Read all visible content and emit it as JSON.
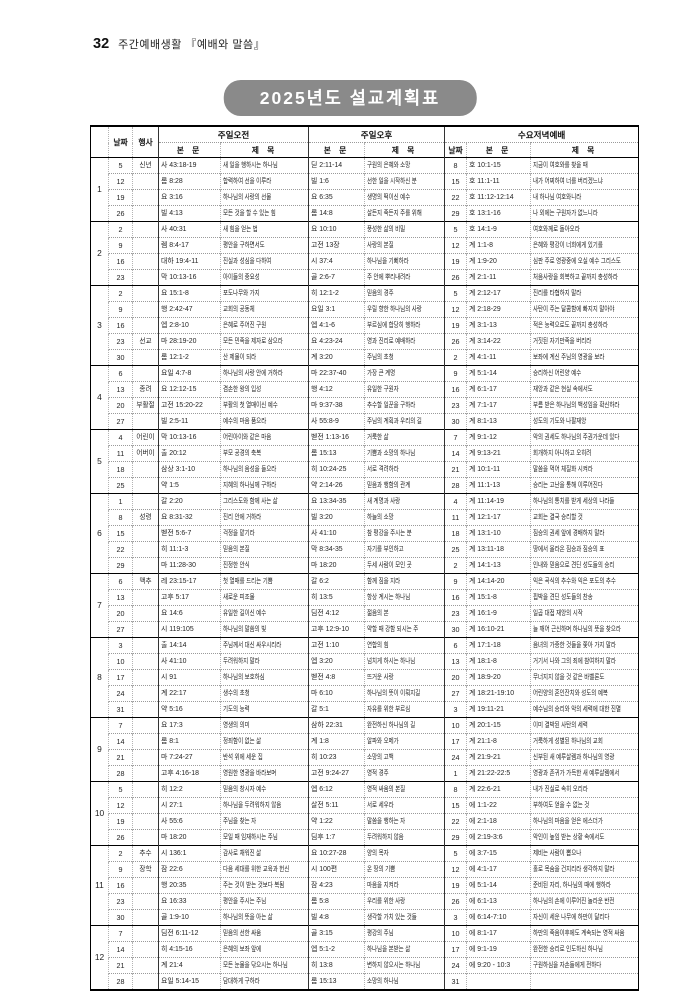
{
  "page": {
    "number": "32",
    "series": "주간예배생활 『예배와 말씀』",
    "badge": "2025년도 설교계획표"
  },
  "colors": {
    "badge_bg": "#8a8a8a",
    "badge_text": "#ffffff",
    "table_line": "#000000"
  },
  "table": {
    "headers": {
      "date": "날짜",
      "event": "행사",
      "am": "주일오전",
      "pm": "주일오후",
      "wed": "수요저녁예배",
      "ref": "본 문",
      "title": "제 목",
      "wed_date": "날짜"
    },
    "months": [
      {
        "num": "1",
        "rows": [
          {
            "date": "5",
            "event": "신년",
            "am_ref": "사 43:18-19",
            "am_title": "새 일을 행하시는 하나님",
            "pm_ref": "딛 2:11-14",
            "pm_title": "구원의 은혜와 소망",
            "wed_date": "8",
            "wed_ref": "호 10:1-15",
            "wed_title": "지금이 여호와를 찾을 때"
          },
          {
            "date": "12",
            "event": "",
            "am_ref": "롬 8:28",
            "am_title": "합력하여 선을 이루라",
            "pm_ref": "빌 1:6",
            "pm_title": "선한 일을 시작하신 분",
            "wed_date": "15",
            "wed_ref": "호 11:1-11",
            "wed_title": "내가 어찌하여 너를 버리겠느냐"
          },
          {
            "date": "19",
            "event": "",
            "am_ref": "요 3:16",
            "am_title": "하나님의 사랑의 선물",
            "pm_ref": "요 6:35",
            "pm_title": "생명의 떡이신 예수",
            "wed_date": "22",
            "wed_ref": "호 11:12-12:14",
            "wed_title": "내 하나님 여호와니라"
          },
          {
            "date": "26",
            "event": "",
            "am_ref": "빌 4:13",
            "am_title": "모든 것을 할 수 있는 힘",
            "pm_ref": "롬 14:8",
            "pm_title": "살든지 죽든지 주를 위해",
            "wed_date": "29",
            "wed_ref": "호 13:1-16",
            "wed_title": "나 외에는 구원자가 없느니라"
          }
        ]
      },
      {
        "num": "2",
        "rows": [
          {
            "date": "2",
            "event": "",
            "am_ref": "사 40:31",
            "am_title": "새 힘을 얻는 법",
            "pm_ref": "요 10:10",
            "pm_title": "풍성한 삶의 비밀",
            "wed_date": "5",
            "wed_ref": "호 14:1-9",
            "wed_title": "여호와께로 돌아오라"
          },
          {
            "date": "9",
            "event": "",
            "am_ref": "렘 8:4-17",
            "am_title": "평안을 구하면서도",
            "pm_ref": "고전 13장",
            "pm_title": "사랑의 본질",
            "wed_date": "12",
            "wed_ref": "계 1:1-8",
            "wed_title": "은혜와 평강이 너희에게 있기를"
          },
          {
            "date": "16",
            "event": "",
            "am_ref": "대하 19:4-11",
            "am_title": "진실과 성심을 다하여",
            "pm_ref": "시 37:4",
            "pm_title": "하나님을 기뻐하라",
            "wed_date": "19",
            "wed_ref": "계 1:9-20",
            "wed_title": "심판 주로 영광중에 오실 예수 그리스도"
          },
          {
            "date": "23",
            "event": "",
            "am_ref": "막 10:13-16",
            "am_title": "아이들의 중요성",
            "pm_ref": "골 2:6-7",
            "pm_title": "주 안에 뿌리내려라",
            "wed_date": "26",
            "wed_ref": "계 2:1-11",
            "wed_title": "처음사랑을 회복하고 끝까지 충성하라"
          }
        ]
      },
      {
        "num": "3",
        "rows": [
          {
            "date": "2",
            "event": "",
            "am_ref": "요 15:1-8",
            "am_title": "포도나무와 가지",
            "pm_ref": "히 12:1-2",
            "pm_title": "믿음의 경주",
            "wed_date": "5",
            "wed_ref": "계 2:12-17",
            "wed_title": "진리를 타협하지 말라"
          },
          {
            "date": "9",
            "event": "",
            "am_ref": "행 2:42-47",
            "am_title": "교회의 공동체",
            "pm_ref": "요일 3:1",
            "pm_title": "우릴 향한 하나님의 사랑",
            "wed_date": "12",
            "wed_ref": "계 2:18-29",
            "wed_title": "사탄이 주는 달콤함에 빠지지 말아야"
          },
          {
            "date": "16",
            "event": "",
            "am_ref": "엡 2:8-10",
            "am_title": "은혜로 주어진 구원",
            "pm_ref": "엡 4:1-6",
            "pm_title": "부르심에 합당히 행하라",
            "wed_date": "19",
            "wed_ref": "계 3:1-13",
            "wed_title": "적은 능력으로도 끝까지 충성하라"
          },
          {
            "date": "23",
            "event": "선교",
            "am_ref": "마 28:19-20",
            "am_title": "모든 민족을 제자로 삼으라",
            "pm_ref": "요 4:23-24",
            "pm_title": "영과 진리로 예배하라",
            "wed_date": "26",
            "wed_ref": "계 3:14-22",
            "wed_title": "거짓된 자기만족을 버리라"
          },
          {
            "date": "30",
            "event": "",
            "am_ref": "롬 12:1-2",
            "am_title": "산 제물이 되라",
            "pm_ref": "계 3:20",
            "pm_title": "주님의 초청",
            "wed_date": "2",
            "wed_ref": "계 4:1-11",
            "wed_title": "보좌에 계신 주님의 영광을 보라"
          }
        ]
      },
      {
        "num": "4",
        "rows": [
          {
            "date": "6",
            "event": "",
            "am_ref": "요일 4:7-8",
            "am_title": "하나님의 사랑 안에 거하라",
            "pm_ref": "마 22:37-40",
            "pm_title": "가장 큰 계명",
            "wed_date": "9",
            "wed_ref": "계 5:1-14",
            "wed_title": "승리하신 어린양 예수"
          },
          {
            "date": "13",
            "event": "종려",
            "am_ref": "요 12:12-15",
            "am_title": "겸손한 왕의 입성",
            "pm_ref": "행 4:12",
            "pm_title": "유일한 구원자",
            "wed_date": "16",
            "wed_ref": "계 6:1-17",
            "wed_title": "재앙과 같은 현실 속에서도"
          },
          {
            "date": "20",
            "event": "부활절",
            "am_ref": "고전 15:20-22",
            "am_title": "부활의 첫 열매이신 예수",
            "pm_ref": "마 9:37-38",
            "pm_title": "추수할 일꾼을 구하라",
            "wed_date": "23",
            "wed_ref": "계 7:1-17",
            "wed_title": "부름 받은 하나님의 백성임을 확신하라"
          },
          {
            "date": "27",
            "event": "",
            "am_ref": "빌 2:5-11",
            "am_title": "예수의 마음 품으라",
            "pm_ref": "사 55:8-9",
            "pm_title": "주님의 계획과 우리의 길",
            "wed_date": "30",
            "wed_ref": "계 8:1-13",
            "wed_title": "성도의 기도와 나팔재앙"
          }
        ]
      },
      {
        "num": "5",
        "rows": [
          {
            "date": "4",
            "event": "어린이",
            "am_ref": "막 10:13-16",
            "am_title": "어린아이와 같은 마음",
            "pm_ref": "벧전 1:13-16",
            "pm_title": "거룩한 삶",
            "wed_date": "7",
            "wed_ref": "계 9:1-12",
            "wed_title": "악의 권세도 하나님의 주권가운데 있다"
          },
          {
            "date": "11",
            "event": "어버이",
            "am_ref": "출 20:12",
            "am_title": "부모 공경의 축복",
            "pm_ref": "롬 15:13",
            "pm_title": "기쁨과 소망의 하나님",
            "wed_date": "14",
            "wed_ref": "계 9:13-21",
            "wed_title": "회개하지 아니하고 오히려"
          },
          {
            "date": "18",
            "event": "",
            "am_ref": "삼상 3:1-10",
            "am_title": "하나님의 음성을 들으라",
            "pm_ref": "히 10:24-25",
            "pm_title": "서로 격려하라",
            "wed_date": "21",
            "wed_ref": "계 10:1-11",
            "wed_title": "말씀을 먹어 체질화 시켜라"
          },
          {
            "date": "25",
            "event": "",
            "am_ref": "약 1:5",
            "am_title": "지혜의 하나님께 구하라",
            "pm_ref": "약 2:14-26",
            "pm_title": "믿음과 행함의 관계",
            "wed_date": "28",
            "wed_ref": "계 11:1-13",
            "wed_title": "승리는 고난을 통해 이루어진다"
          }
        ]
      },
      {
        "num": "6",
        "rows": [
          {
            "date": "1",
            "event": "",
            "am_ref": "갈 2:20",
            "am_title": "그리스도와 함께 사는 삶",
            "pm_ref": "요 13:34-35",
            "pm_title": "새 계명과 사랑",
            "wed_date": "4",
            "wed_ref": "계 11:14-19",
            "wed_title": "하나님의 통치를 받게 세상의 나라들"
          },
          {
            "date": "8",
            "event": "성령",
            "am_ref": "요 8:31-32",
            "am_title": "진리 안에 거하라",
            "pm_ref": "빌 3:20",
            "pm_title": "하늘의 소망",
            "wed_date": "11",
            "wed_ref": "계 12:1-17",
            "wed_title": "교회는 결국 승리할 것"
          },
          {
            "date": "15",
            "event": "",
            "am_ref": "벧전 5:6-7",
            "am_title": "걱정을 맡기라",
            "pm_ref": "사 41:10",
            "pm_title": "참 평강을 주시는 분",
            "wed_date": "18",
            "wed_ref": "계 13:1-10",
            "wed_title": "짐승의 권세 앞에 경배하지 말라"
          },
          {
            "date": "22",
            "event": "",
            "am_ref": "히 11:1-3",
            "am_title": "믿음의 본질",
            "pm_ref": "막 8:34-35",
            "pm_title": "자기를 부인하고",
            "wed_date": "25",
            "wed_ref": "계 13:11-18",
            "wed_title": "땅에서 올라온 짐승과 짐승의 표"
          },
          {
            "date": "29",
            "event": "",
            "am_ref": "마 11:28-30",
            "am_title": "진정한 안식",
            "pm_ref": "마 18:20",
            "pm_title": "두세 사람이 모인 곳",
            "wed_date": "2",
            "wed_ref": "계 14:1-13",
            "wed_title": "인내와 믿음으로 견딘 성도들의 승리"
          }
        ]
      },
      {
        "num": "7",
        "rows": [
          {
            "date": "6",
            "event": "맥추",
            "am_ref": "레 23:15-17",
            "am_title": "첫 열매를 드리는 기쁨",
            "pm_ref": "갈 6:2",
            "pm_title": "함께 짐을 지라",
            "wed_date": "9",
            "wed_ref": "계 14:14-20",
            "wed_title": "익은 곡식의 추수와 익은 포도의 추수"
          },
          {
            "date": "13",
            "event": "",
            "am_ref": "고후 5:17",
            "am_title": "새로운 피조물",
            "pm_ref": "히 13:5",
            "pm_title": "항상 계시는 하나님",
            "wed_date": "16",
            "wed_ref": "계 15:1-8",
            "wed_title": "핍박을 견딘 성도들의 찬송"
          },
          {
            "date": "20",
            "event": "",
            "am_ref": "요 14:6",
            "am_title": "유일한 길이신 예수",
            "pm_ref": "딤전 4:12",
            "pm_title": "젊음의 본",
            "wed_date": "23",
            "wed_ref": "계 16:1-9",
            "wed_title": "일곱 대접 재앙의 시작"
          },
          {
            "date": "27",
            "event": "",
            "am_ref": "시 119:105",
            "am_title": "하나님의 말씀의 빛",
            "pm_ref": "고후 12:9-10",
            "pm_title": "약할 때 강함 되시는 주",
            "wed_date": "30",
            "wed_ref": "계 16:10-21",
            "wed_title": "늘 깨어 근신하며 하나님의 뜻을 찾으라"
          }
        ]
      },
      {
        "num": "8",
        "rows": [
          {
            "date": "3",
            "event": "",
            "am_ref": "출 14:14",
            "am_title": "주님께서 대신 싸우시리라",
            "pm_ref": "고전 1:10",
            "pm_title": "연합의 힘",
            "wed_date": "6",
            "wed_ref": "계 17:1-18",
            "wed_title": "음녀의 가증한 것들을 쫓아 가지 말라"
          },
          {
            "date": "10",
            "event": "",
            "am_ref": "사 41:10",
            "am_title": "두려워하지 말라",
            "pm_ref": "엡 3:20",
            "pm_title": "넘치게 하시는 하나님",
            "wed_date": "13",
            "wed_ref": "계 18:1-8",
            "wed_title": "거기서 나와 그의 죄에 참여하지 말라"
          },
          {
            "date": "17",
            "event": "",
            "am_ref": "시 91",
            "am_title": "하나님의 보호하심",
            "pm_ref": "벧전 4:8",
            "pm_title": "뜨거운 사랑",
            "wed_date": "20",
            "wed_ref": "계 18:9-20",
            "wed_title": "무너지지 않을 것 같은 바벨론도"
          },
          {
            "date": "24",
            "event": "",
            "am_ref": "계 22:17",
            "am_title": "생수의 초청",
            "pm_ref": "마 6:10",
            "pm_title": "하나님의 뜻이 이뤄지길",
            "wed_date": "27",
            "wed_ref": "계 18:21-19:10",
            "wed_title": "어린양의 혼인잔치와 성도의 예복"
          },
          {
            "date": "31",
            "event": "",
            "am_ref": "약 5:16",
            "am_title": "기도의 능력",
            "pm_ref": "갈 5:1",
            "pm_title": "자유를 위한 부르심",
            "wed_date": "3",
            "wed_ref": "계 19:11-21",
            "wed_title": "예수님의 승리와 악의 세력에 대한 진멸"
          }
        ]
      },
      {
        "num": "9",
        "rows": [
          {
            "date": "7",
            "event": "",
            "am_ref": "요 17:3",
            "am_title": "영생의 의미",
            "pm_ref": "삼하 22:31",
            "pm_title": "완전하신 하나님의 길",
            "wed_date": "10",
            "wed_ref": "계 20:1-15",
            "wed_title": "이미 결박된 사탄의 세력"
          },
          {
            "date": "14",
            "event": "",
            "am_ref": "롬 8:1",
            "am_title": "정죄함이 없는 삶",
            "pm_ref": "계 1:8",
            "pm_title": "알파와 오메가",
            "wed_date": "17",
            "wed_ref": "계 21:1-8",
            "wed_title": "거룩하게 성별된 하나님의 교회"
          },
          {
            "date": "21",
            "event": "",
            "am_ref": "마 7:24-27",
            "am_title": "반석 위에 세운 집",
            "pm_ref": "히 10:23",
            "pm_title": "소망의 고백",
            "wed_date": "24",
            "wed_ref": "계 21:9-21",
            "wed_title": "신부된 새 예루살렘과 하나님의 영광"
          },
          {
            "date": "28",
            "event": "",
            "am_ref": "고후 4:16-18",
            "am_title": "영원한 영광을 바라보며",
            "pm_ref": "고전 9:24-27",
            "pm_title": "영적 경주",
            "wed_date": "1",
            "wed_ref": "계 21:22-22:5",
            "wed_title": "영광과 존귀가 가득한 새 예루살렘에서"
          }
        ]
      },
      {
        "num": "10",
        "rows": [
          {
            "date": "5",
            "event": "",
            "am_ref": "히 12:2",
            "am_title": "믿음의 창시자 예수",
            "pm_ref": "엡 6:12",
            "pm_title": "영적 싸움의 본질",
            "wed_date": "8",
            "wed_ref": "계 22:6-21",
            "wed_title": "내가 진실로 속히 오리라"
          },
          {
            "date": "12",
            "event": "",
            "am_ref": "시 27:1",
            "am_title": "하나님을 두려워하지 않음",
            "pm_ref": "살전 5:11",
            "pm_title": "서로 세우라",
            "wed_date": "15",
            "wed_ref": "에 1:1-22",
            "wed_title": "부하여도 얻을 수 없는 것"
          },
          {
            "date": "19",
            "event": "",
            "am_ref": "사 55:6",
            "am_title": "주님을 찾는 자",
            "pm_ref": "약 1:22",
            "pm_title": "말씀을 행하는 자",
            "wed_date": "22",
            "wed_ref": "에 2:1-18",
            "wed_title": "하나님의 마음을 얻은 에스더가"
          },
          {
            "date": "26",
            "event": "",
            "am_ref": "마 18:20",
            "am_title": "모일 때 임재하시는 주님",
            "pm_ref": "딤후 1:7",
            "pm_title": "두려워하지 않음",
            "wed_date": "29",
            "wed_ref": "에 2:19-3:6",
            "wed_title": "악인이 높임 받는 상황 속에서도"
          }
        ]
      },
      {
        "num": "11",
        "rows": [
          {
            "date": "2",
            "event": "추수",
            "am_ref": "시 136:1",
            "am_title": "감사로 채워진 삶",
            "pm_ref": "요 10:27-28",
            "pm_title": "양의 목자",
            "wed_date": "5",
            "wed_ref": "에 3:7-15",
            "wed_title": "제비는 사람이 뽑으나"
          },
          {
            "date": "9",
            "event": "장학",
            "am_ref": "잠 22:6",
            "am_title": "다음 세대를 위한 교육과 헌신",
            "pm_ref": "시 100편",
            "pm_title": "온 땅의 기쁨",
            "wed_date": "12",
            "wed_ref": "에 4:1-17",
            "wed_title": "홀로 목숨을 건지리라 생각하지 말라"
          },
          {
            "date": "16",
            "event": "",
            "am_ref": "행 20:35",
            "am_title": "주는 것이 받는 것보다 복됨",
            "pm_ref": "잠 4:23",
            "pm_title": "마음을 지켜라",
            "wed_date": "19",
            "wed_ref": "에 5:1-14",
            "wed_title": "준비된 자리, 하나님의 때에 행하라"
          },
          {
            "date": "23",
            "event": "",
            "am_ref": "요 16:33",
            "am_title": "평안을 주시는 주님",
            "pm_ref": "롬 5:8",
            "pm_title": "우리를 위한 사랑",
            "wed_date": "26",
            "wed_ref": "에 6:1-13",
            "wed_title": "하나님의 손에 이루어진 놀라운 반전"
          },
          {
            "date": "30",
            "event": "",
            "am_ref": "골 1:9-10",
            "am_title": "하나님의 뜻을 아는 삶",
            "pm_ref": "빌 4:8",
            "pm_title": "생각할 가치 있는 것들",
            "wed_date": "3",
            "wed_ref": "에 6:14-7:10",
            "wed_title": "자신이 세운 나무에 하만이 달리다"
          }
        ]
      },
      {
        "num": "12",
        "rows": [
          {
            "date": "7",
            "event": "",
            "am_ref": "딤전 6:11-12",
            "am_title": "믿음의 선한 싸움",
            "pm_ref": "골 3:15",
            "pm_title": "평강의 주님",
            "wed_date": "10",
            "wed_ref": "에 8:1-17",
            "wed_title": "하만의 죽음이후에도 계속되는 영적 싸움"
          },
          {
            "date": "14",
            "event": "",
            "am_ref": "히 4:15-16",
            "am_title": "은혜의 보좌 앞에",
            "pm_ref": "엡 5:1-2",
            "pm_title": "하나님을 본받는 삶",
            "wed_date": "17",
            "wed_ref": "에 9:1-19",
            "wed_title": "완전한 승리로 인도하신 하나님"
          },
          {
            "date": "21",
            "event": "",
            "am_ref": "계 21:4",
            "am_title": "모든 눈물을 닦으시는 하나님",
            "pm_ref": "히 13:8",
            "pm_title": "변하지 않으시는 하나님",
            "wed_date": "24",
            "wed_ref": "에 9:20 - 10:3",
            "wed_title": "구원하심을 자손들에게 전하다"
          },
          {
            "date": "28",
            "event": "",
            "am_ref": "요일 5:14-15",
            "am_title": "담대하게 구하라",
            "pm_ref": "롬 15:13",
            "pm_title": "소망의 하나님",
            "wed_date": "31",
            "wed_ref": "",
            "wed_title": ""
          }
        ]
      }
    ]
  }
}
